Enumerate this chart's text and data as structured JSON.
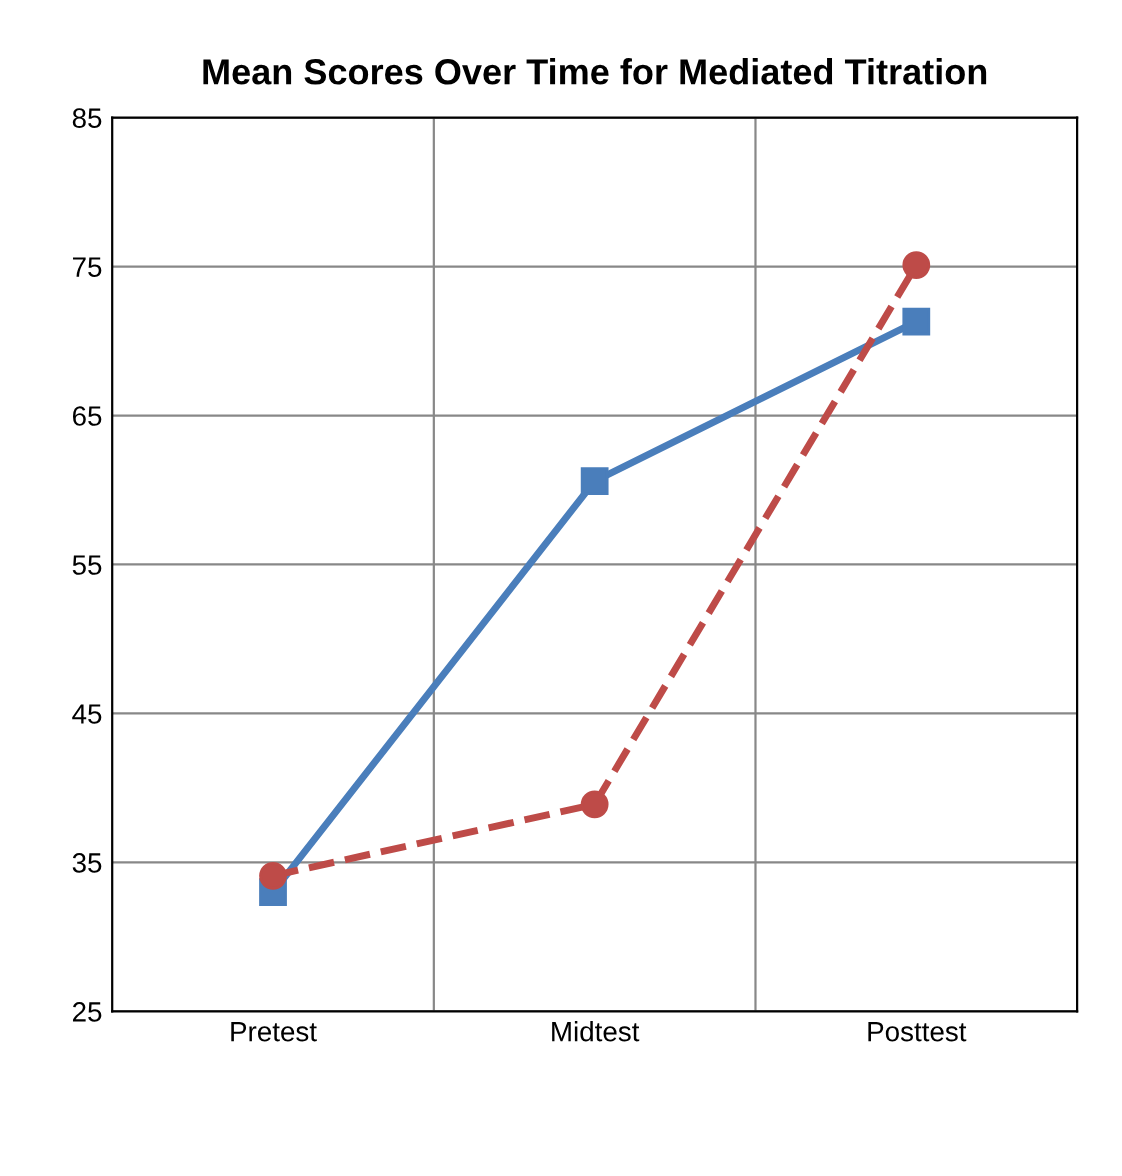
{
  "chart_data": {
    "type": "line",
    "title": "Mean Scores Over Time for Mediated Titration",
    "categories": [
      "Pretest",
      "Midtest",
      "Posttest"
    ],
    "series": [
      {
        "color": "#4a7ebb",
        "values": [
          33,
          60.6,
          71.3
        ],
        "marker": "square",
        "line_style": "solid"
      },
      {
        "color": "#be4b48",
        "values": [
          34.1,
          38.9,
          75.1
        ],
        "marker": "circle",
        "line_style": "dashed"
      }
    ],
    "ylim": [
      25,
      85
    ],
    "yticks": [
      25,
      35,
      45,
      55,
      65,
      75,
      85
    ],
    "grid": true
  }
}
